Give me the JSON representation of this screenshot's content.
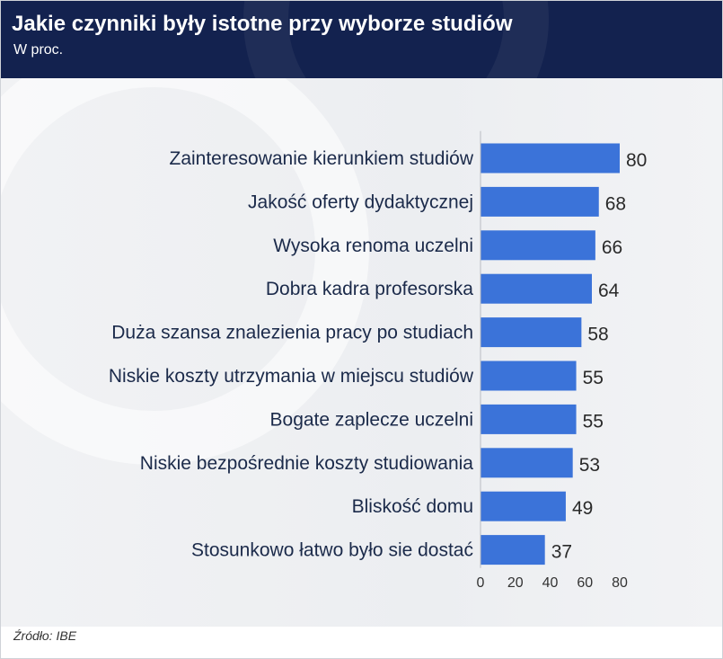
{
  "header": {
    "title": "Jakie czynniki były istotne przy wyborze studiów",
    "subtitle": "W proc."
  },
  "source": "Źródło: IBE",
  "colors": {
    "header_bg": "#13224f",
    "bar": "#3b73d9",
    "label": "#1b2a4a"
  },
  "chart_data": {
    "type": "bar",
    "orientation": "horizontal",
    "title": "Jakie czynniki były istotne przy wyborze studiów",
    "subtitle": "W proc.",
    "categories": [
      "Zainteresowanie kierunkiem studiów",
      "Jakość oferty dydaktycznej",
      "Wysoka renoma uczelni",
      "Dobra kadra profesorska",
      "Duża szansa znalezienia pracy po studiach",
      "Niskie koszty utrzymania w miejscu studiów",
      "Bogate zaplecze uczelni",
      "Niskie bezpośrednie koszty studiowania",
      "Bliskość domu",
      "Stosunkowo łatwo było sie dostać"
    ],
    "values": [
      80,
      68,
      66,
      64,
      58,
      55,
      55,
      53,
      49,
      37
    ],
    "xlim": [
      0,
      80
    ],
    "xticks": [
      0,
      20,
      40,
      60,
      80
    ],
    "grid": false,
    "legend": "none"
  }
}
